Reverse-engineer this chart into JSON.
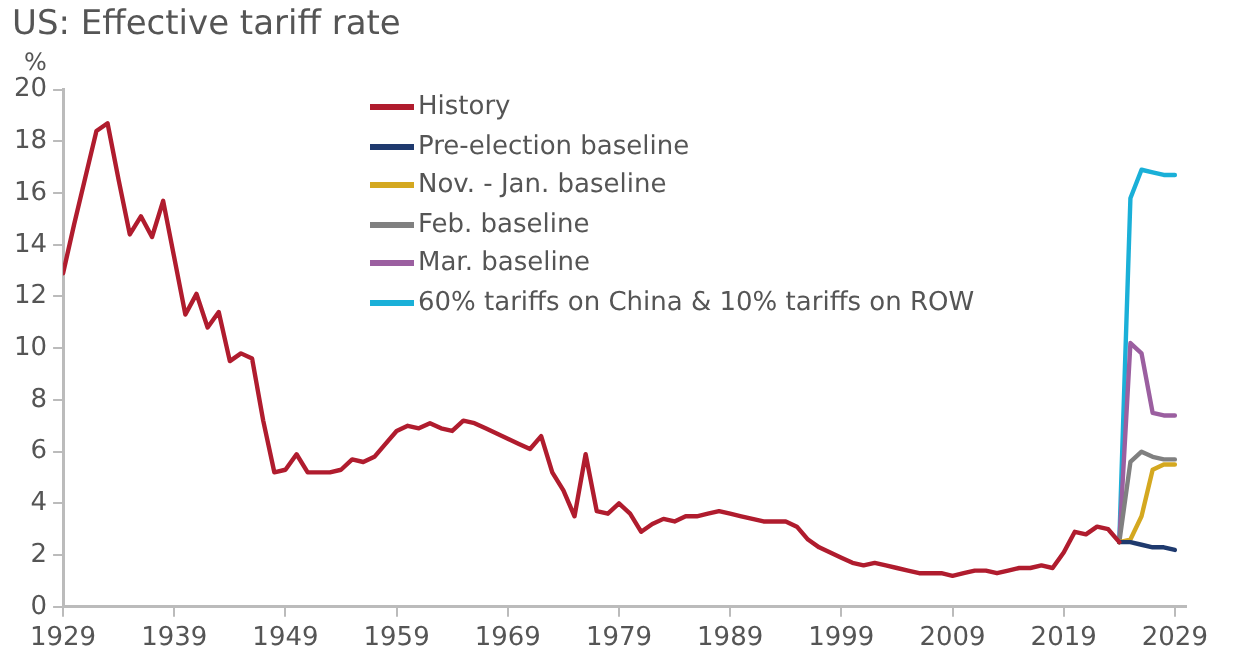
{
  "chart_data": {
    "type": "line",
    "title": "US: Effective tariff rate",
    "ylabel": "%",
    "xlim": [
      1929,
      2030
    ],
    "xticks": [
      1929,
      1939,
      1949,
      1959,
      1969,
      1979,
      1989,
      1999,
      2009,
      2019,
      2029
    ],
    "ylim": [
      0,
      20
    ],
    "yticks": [
      0,
      2,
      4,
      6,
      8,
      10,
      12,
      14,
      16,
      18,
      20
    ],
    "grid": false,
    "legend": "top",
    "marker": "none",
    "line_style": "solid",
    "series": [
      {
        "name": "History",
        "color": "#b01c2e",
        "x": [
          1929,
          1930,
          1931,
          1932,
          1933,
          1934,
          1935,
          1936,
          1937,
          1938,
          1939,
          1940,
          1941,
          1942,
          1943,
          1944,
          1945,
          1946,
          1947,
          1948,
          1949,
          1950,
          1951,
          1952,
          1953,
          1954,
          1955,
          1956,
          1957,
          1958,
          1959,
          1960,
          1961,
          1962,
          1963,
          1964,
          1965,
          1966,
          1967,
          1968,
          1969,
          1970,
          1971,
          1972,
          1973,
          1974,
          1975,
          1976,
          1977,
          1978,
          1979,
          1980,
          1981,
          1982,
          1983,
          1984,
          1985,
          1986,
          1987,
          1988,
          1989,
          1990,
          1991,
          1992,
          1993,
          1994,
          1995,
          1996,
          1997,
          1998,
          1999,
          2000,
          2001,
          2002,
          2003,
          2004,
          2005,
          2006,
          2007,
          2008,
          2009,
          2010,
          2011,
          2012,
          2013,
          2014,
          2015,
          2016,
          2017,
          2018,
          2019,
          2020,
          2021,
          2022,
          2023,
          2024
        ],
        "values": [
          12.9,
          14.8,
          16.6,
          18.4,
          18.7,
          16.5,
          14.4,
          15.1,
          14.3,
          15.7,
          13.5,
          11.3,
          12.1,
          10.8,
          11.4,
          9.5,
          9.8,
          9.6,
          7.2,
          5.2,
          5.3,
          5.9,
          5.2,
          5.2,
          5.2,
          5.3,
          5.7,
          5.6,
          5.8,
          6.3,
          6.8,
          7.0,
          6.9,
          7.1,
          6.9,
          6.8,
          7.2,
          7.1,
          6.9,
          6.7,
          6.5,
          6.3,
          6.1,
          6.6,
          5.2,
          4.5,
          3.5,
          5.9,
          3.7,
          3.6,
          4.0,
          3.6,
          2.9,
          3.2,
          3.4,
          3.3,
          3.5,
          3.5,
          3.6,
          3.7,
          3.6,
          3.5,
          3.4,
          3.3,
          3.3,
          3.3,
          3.1,
          2.6,
          2.3,
          2.1,
          1.9,
          1.7,
          1.6,
          1.7,
          1.6,
          1.5,
          1.4,
          1.3,
          1.3,
          1.3,
          1.2,
          1.3,
          1.4,
          1.4,
          1.3,
          1.4,
          1.5,
          1.5,
          1.6,
          1.5,
          2.1,
          2.9,
          2.8,
          3.1,
          3.0,
          2.5
        ]
      },
      {
        "name": "Pre-election baseline",
        "color": "#1f3a6e",
        "x": [
          2024,
          2025,
          2026,
          2027,
          2028,
          2029
        ],
        "values": [
          2.5,
          2.5,
          2.4,
          2.3,
          2.3,
          2.2
        ]
      },
      {
        "name": "Nov. - Jan. baseline",
        "color": "#d4a820",
        "x": [
          2024,
          2025,
          2026,
          2027,
          2028,
          2029
        ],
        "values": [
          2.5,
          2.6,
          3.5,
          5.3,
          5.5,
          5.5
        ]
      },
      {
        "name": "Feb. baseline",
        "color": "#808080",
        "x": [
          2024,
          2025,
          2026,
          2027,
          2028,
          2029
        ],
        "values": [
          2.5,
          5.6,
          6.0,
          5.8,
          5.7,
          5.7
        ]
      },
      {
        "name": "Mar. baseline",
        "color": "#9b5fa0",
        "x": [
          2024,
          2025,
          2026,
          2027,
          2028,
          2029
        ],
        "values": [
          2.5,
          10.2,
          9.8,
          7.5,
          7.4,
          7.4
        ]
      },
      {
        "name": "60% tariffs on China & 10% tariffs on ROW",
        "color": "#1ab0d8",
        "x": [
          2024,
          2025,
          2026,
          2027,
          2028,
          2029
        ],
        "values": [
          2.5,
          15.8,
          16.9,
          16.8,
          16.7,
          16.7
        ]
      }
    ]
  }
}
